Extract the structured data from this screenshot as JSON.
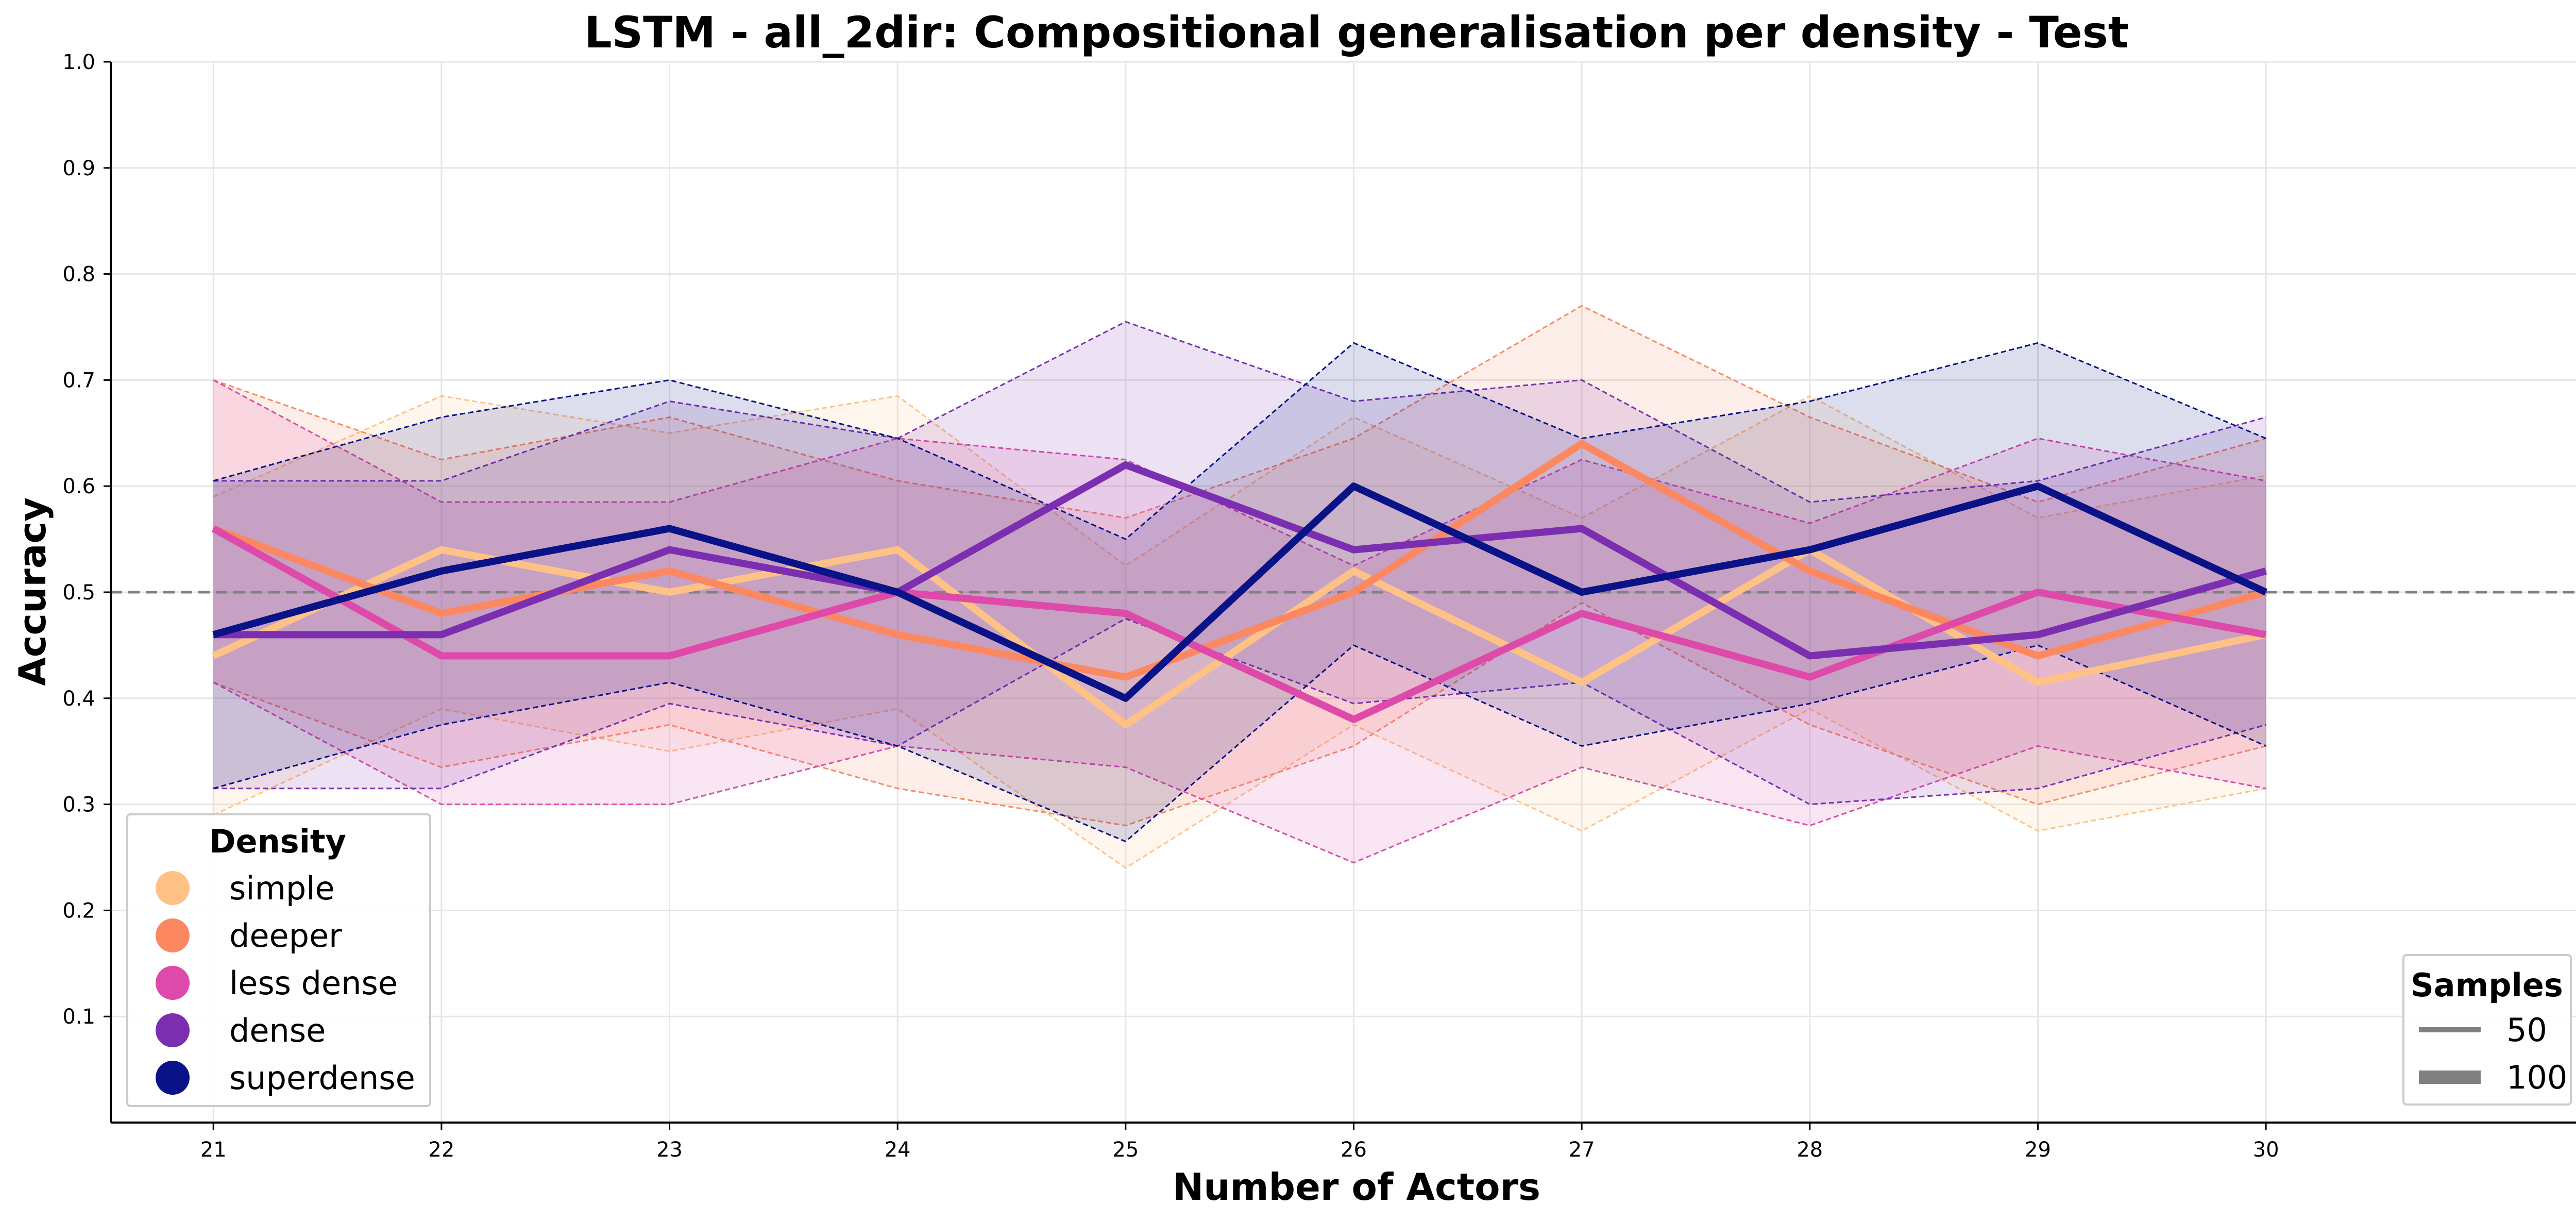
{
  "chart_data": {
    "type": "line",
    "title": "LSTM - all_2dir: Compositional generalisation per density - Test",
    "xlabel": "Number of Actors",
    "ylabel": "Accuracy",
    "x": [
      21,
      22,
      23,
      24,
      25,
      26,
      27,
      28,
      29,
      30
    ],
    "ylim": [
      0.0,
      1.0
    ],
    "xlim": [
      20.55,
      31.45
    ],
    "yticks": [
      "0.1",
      "0.2",
      "0.3",
      "0.4",
      "0.5",
      "0.6",
      "0.7",
      "0.8",
      "0.9",
      "1.0"
    ],
    "xticks": [
      "21",
      "22",
      "23",
      "24",
      "25",
      "26",
      "27",
      "28",
      "29",
      "30"
    ],
    "reference_line": 0.5,
    "reference_line_color": "#808080",
    "grid": true,
    "series": [
      {
        "name": "simple",
        "color": "#fec287",
        "values": [
          0.44,
          0.54,
          0.5,
          0.54,
          0.375,
          0.52,
          0.415,
          0.54,
          0.415,
          0.46
        ],
        "upper": [
          0.59,
          0.685,
          0.65,
          0.685,
          0.525,
          0.665,
          0.57,
          0.685,
          0.57,
          0.61
        ],
        "lower": [
          0.29,
          0.39,
          0.35,
          0.39,
          0.24,
          0.375,
          0.275,
          0.39,
          0.275,
          0.315
        ]
      },
      {
        "name": "deeper",
        "color": "#fb8861",
        "values": [
          0.56,
          0.48,
          0.52,
          0.46,
          0.42,
          0.5,
          0.64,
          0.52,
          0.44,
          0.5
        ],
        "upper": [
          0.7,
          0.625,
          0.665,
          0.605,
          0.57,
          0.645,
          0.77,
          0.665,
          0.585,
          0.645
        ],
        "lower": [
          0.415,
          0.335,
          0.375,
          0.315,
          0.28,
          0.355,
          0.49,
          0.375,
          0.3,
          0.355
        ]
      },
      {
        "name": "less dense",
        "color": "#de4aa9",
        "values": [
          0.56,
          0.44,
          0.44,
          0.5,
          0.48,
          0.38,
          0.48,
          0.42,
          0.5,
          0.46
        ],
        "upper": [
          0.7,
          0.585,
          0.585,
          0.645,
          0.625,
          0.525,
          0.625,
          0.565,
          0.645,
          0.605
        ],
        "lower": [
          0.415,
          0.3,
          0.3,
          0.355,
          0.335,
          0.245,
          0.335,
          0.28,
          0.355,
          0.315
        ]
      },
      {
        "name": "dense",
        "color": "#7b2fb0",
        "values": [
          0.46,
          0.46,
          0.54,
          0.5,
          0.62,
          0.54,
          0.56,
          0.44,
          0.46,
          0.52
        ],
        "upper": [
          0.605,
          0.605,
          0.68,
          0.645,
          0.755,
          0.68,
          0.7,
          0.585,
          0.605,
          0.665
        ],
        "lower": [
          0.315,
          0.315,
          0.395,
          0.355,
          0.475,
          0.395,
          0.415,
          0.3,
          0.315,
          0.375
        ]
      },
      {
        "name": "superdense",
        "color": "#0a1287",
        "values": [
          0.46,
          0.52,
          0.56,
          0.5,
          0.4,
          0.6,
          0.5,
          0.54,
          0.6,
          0.5
        ],
        "upper": [
          0.605,
          0.665,
          0.7,
          0.645,
          0.55,
          0.735,
          0.645,
          0.68,
          0.735,
          0.645
        ],
        "lower": [
          0.315,
          0.375,
          0.415,
          0.355,
          0.265,
          0.45,
          0.355,
          0.395,
          0.45,
          0.355
        ]
      }
    ],
    "legend_density": {
      "title": "Density",
      "placement": "lower-left",
      "entries": [
        "simple",
        "deeper",
        "less dense",
        "dense",
        "superdense"
      ]
    },
    "legend_samples": {
      "title": "Samples",
      "placement": "lower-right",
      "entries": [
        {
          "label": "50",
          "color": "#808080",
          "weight": "thin"
        },
        {
          "label": "100",
          "color": "#808080",
          "weight": "thick"
        }
      ]
    }
  }
}
